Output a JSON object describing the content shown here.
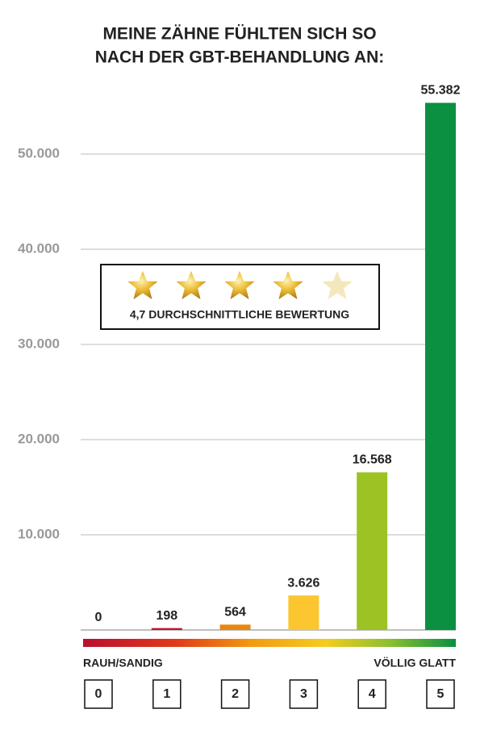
{
  "chart_data": {
    "type": "bar",
    "title": [
      "MEINE ZÄHNE FÜHLTEN SICH SO",
      "NACH DER GBT-BEHANDLUNG AN:"
    ],
    "categories": [
      "0",
      "1",
      "2",
      "3",
      "4",
      "5"
    ],
    "values": [
      0,
      198,
      564,
      3626,
      16568,
      55382
    ],
    "value_labels": [
      "0",
      "198",
      "564",
      "3.626",
      "16.568",
      "55.382"
    ],
    "colors": [
      "#c8102e",
      "#c8102e",
      "#e8870e",
      "#fcc630",
      "#9dc224",
      "#0a9040"
    ],
    "ylim": [
      0,
      56000
    ],
    "yticks": [
      {
        "value": 10000,
        "label": "10.000"
      },
      {
        "value": 20000,
        "label": "20.000"
      },
      {
        "value": 30000,
        "label": "30.000"
      },
      {
        "value": 40000,
        "label": "40.000"
      },
      {
        "value": 50000,
        "label": "50.000"
      }
    ],
    "grid": true,
    "rating_label": "4,7 DURCHSCHNITTLICHE BEWERTUNG",
    "scale_labels": [
      "RAUH/SANDIG",
      "VÖLLIG GLATT"
    ]
  }
}
